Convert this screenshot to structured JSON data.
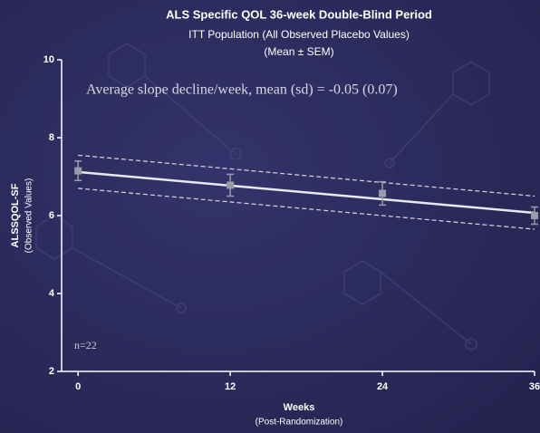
{
  "chart_data": {
    "type": "line",
    "title": "ALS Specific QOL 36-week Double-Blind Period",
    "subtitle": "ITT Population (All Observed Placebo Values)",
    "subtitle2": "(Mean ± SEM)",
    "annotation": "Average slope decline/week, mean (sd) = -0.05 (0.07)",
    "n_label": "n=22",
    "ylabel": "ALSSQOL-SF",
    "ylabel2": "(Observed Values)",
    "xlabel": "Weeks",
    "xlabel2": "(Post-Randomization)",
    "xlim": [
      -1.3,
      36
    ],
    "ylim": [
      2,
      10
    ],
    "xticks": [
      0,
      12,
      24,
      36
    ],
    "yticks": [
      2,
      4,
      6,
      8,
      10
    ],
    "points": {
      "x": [
        0,
        12,
        24,
        36
      ],
      "values": [
        7.15,
        6.78,
        6.57,
        6.0
      ],
      "errors": [
        0.25,
        0.28,
        0.3,
        0.22
      ],
      "color": "#9a9aa8"
    },
    "fit": {
      "x": [
        0,
        36
      ],
      "values": [
        7.12,
        6.07
      ],
      "color": "#e8e8ee"
    },
    "ci_upper": {
      "x": [
        0,
        36
      ],
      "values": [
        7.55,
        6.5
      ],
      "color": "#d8d8e0"
    },
    "ci_lower": {
      "x": [
        0,
        36
      ],
      "values": [
        6.7,
        5.65
      ],
      "color": "#d8d8e0"
    }
  }
}
